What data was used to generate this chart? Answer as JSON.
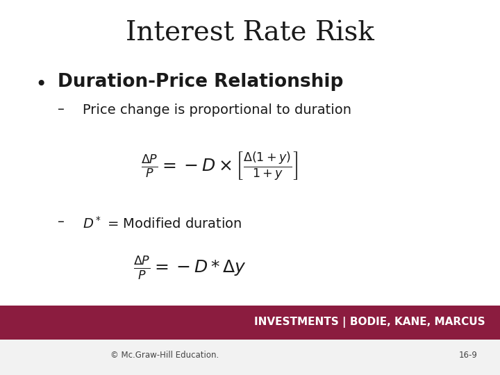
{
  "title": "Interest Rate Risk",
  "title_fontsize": 28,
  "title_color": "#1a1a1a",
  "bg_color": "#ffffff",
  "bullet_text": "Duration-Price Relationship",
  "sub1_text": "Price change is proportional to duration",
  "sub2_text": "= Modified duration",
  "footer_bg": "#8B1C3F",
  "footer_text": "INVESTMENTS | BODIE, KANE, MARCUS",
  "footer_text_color": "#ffffff",
  "copyright_text": "© Mc.Graw-Hill Education.",
  "page_num": "16-9"
}
